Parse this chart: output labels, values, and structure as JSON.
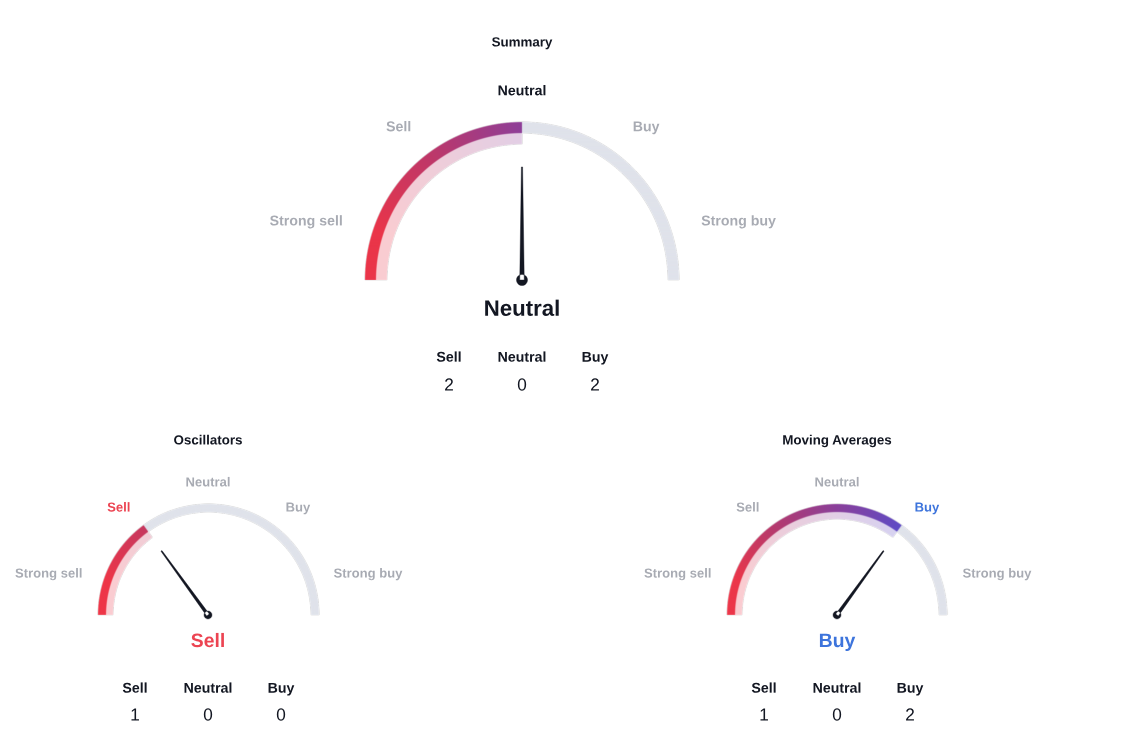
{
  "chart_data": [
    {
      "type": "other",
      "title": "Summary",
      "categories": [
        "Strong sell",
        "Sell",
        "Neutral",
        "Buy",
        "Strong buy"
      ],
      "colors": [
        "#ea3549",
        "#bd386a",
        "#8e3f98",
        null,
        null
      ],
      "needle": "Neutral"
    },
    {
      "type": "other",
      "categories": [
        "Sell",
        "Neutral",
        "Buy"
      ],
      "values": [
        2,
        0,
        2
      ],
      "data_labels": true
    },
    {
      "type": "other",
      "title": "Oscillators",
      "categories": [
        "Strong sell",
        "Sell",
        "Neutral",
        "Buy",
        "Strong buy"
      ],
      "colors": [
        "#ee3648",
        "#c6385f",
        null,
        null,
        null
      ],
      "needle": "Sell"
    },
    {
      "type": "other",
      "categories": [
        "Sell",
        "Neutral",
        "Buy"
      ],
      "values": [
        1,
        0,
        0
      ],
      "data_labels": true
    },
    {
      "type": "other",
      "title": "Moving Averages",
      "categories": [
        "Strong sell",
        "Sell",
        "Neutral",
        "Buy",
        "Strong buy"
      ],
      "colors": [
        "#ec3649",
        "#b53a6e",
        "#8a409b",
        "#5f4cc6",
        null
      ],
      "needle": "Buy"
    },
    {
      "type": "other",
      "categories": [
        "Sell",
        "Neutral",
        "Buy"
      ],
      "values": [
        1,
        0,
        2
      ],
      "data_labels": true
    }
  ]
}
